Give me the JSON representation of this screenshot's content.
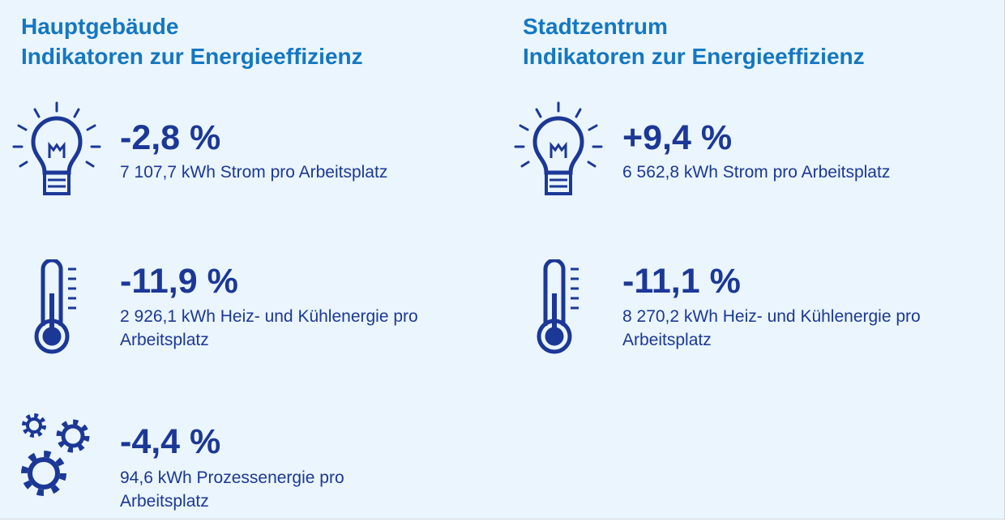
{
  "panels": [
    {
      "title": [
        "Hauptgebäude",
        "Indikatoren zur Energieeffizienz"
      ],
      "items": [
        {
          "value": "-2,8 %",
          "description": "7 107,7 kWh Strom pro Arbeitsplatz"
        },
        {
          "value": "-11,9 %",
          "description": "2 926,1 kWh Heiz- und Kühlenergie pro Arbeitsplatz"
        },
        {
          "value": "-4,4 %",
          "description": "94,6 kWh Prozessenergie pro Arbeitsplatz"
        }
      ]
    },
    {
      "title": [
        "Stadtzentrum",
        "Indikatoren zur Energieeffizienz"
      ],
      "items": [
        {
          "value": "+9,4 %",
          "description": "6 562,8 kWh Strom pro Arbeitsplatz"
        },
        {
          "value": "-11,1 %",
          "description": "8 270,2 kWh Heiz- und Kühlenergie pro Arbeitsplatz"
        }
      ]
    }
  ]
}
